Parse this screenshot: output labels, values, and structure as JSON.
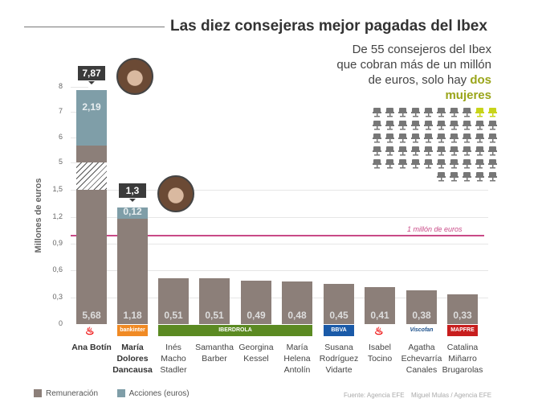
{
  "title": "Las diez consejeras mejor pagadas del Ibex",
  "subtitle": {
    "text": "De 55 consejeros del Ibex que cobran más de un millón de euros, solo hay",
    "highlight": "dos mujeres"
  },
  "chairs": {
    "total": 55,
    "women": 2,
    "color_men": "#777777",
    "color_women": "#c8d41a"
  },
  "threshold_label": "1 millón de euros",
  "footer": {
    "source": "Fuente: Agencia EFE",
    "credit": "Miguel Mulas / Agencia EFE"
  },
  "chart_data": {
    "type": "bar",
    "stacked": true,
    "ylabel": "Millones de euros",
    "yticks": [
      "0",
      "0,3",
      "0,6",
      "0,9",
      "1,2",
      "1,5",
      "5",
      "6",
      "7",
      "8"
    ],
    "axis_break": [
      1.5,
      5
    ],
    "threshold": 1,
    "categories": [
      "Ana Botín",
      "María Dolores Dancausa",
      "Inés Macho Stadler",
      "Samantha Barber",
      "Georgina Kessel",
      "María Helena Antolín",
      "Susana Rodríguez Vidarte",
      "Isabel Tocino",
      "Agatha Echevarría Canales",
      "Catalina Miñarro Brugarolas"
    ],
    "companies": [
      "Santander",
      "bankinter",
      "IBERDROLA",
      "IBERDROLA",
      "IBERDROLA",
      "IBERDROLA",
      "BBVA",
      "Santander",
      "Viscofan",
      "MAPFRE"
    ],
    "series": [
      {
        "name": "Remuneración",
        "color": "#8c7f79",
        "values": [
          5.68,
          1.18,
          0.51,
          0.51,
          0.49,
          0.48,
          0.45,
          0.41,
          0.38,
          0.33
        ],
        "labels": [
          "5,68",
          "1,18",
          "0,51",
          "0,51",
          "0,49",
          "0,48",
          "0,45",
          "0,41",
          "0,38",
          "0,33"
        ]
      },
      {
        "name": "Acciones (euros)",
        "color": "#7f9ea8",
        "values": [
          2.19,
          0.12,
          0,
          0,
          0,
          0,
          0,
          0,
          0,
          0
        ],
        "labels": [
          "2,19",
          "0,12"
        ]
      }
    ],
    "totals": {
      "Ana Botín": "7,87",
      "María Dolores Dancausa": "1,3"
    }
  }
}
